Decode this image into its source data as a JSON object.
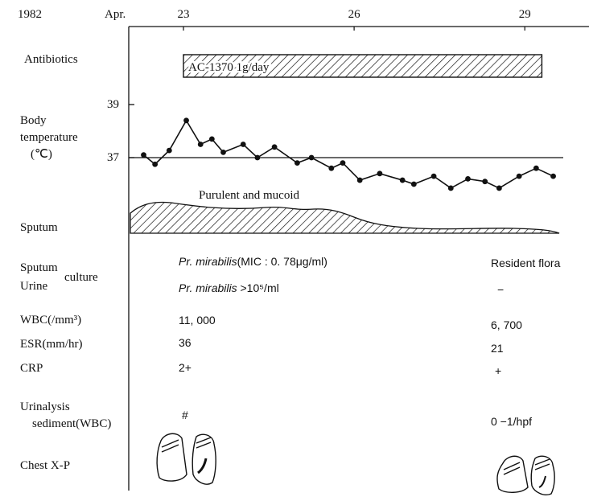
{
  "header": {
    "year": "1982",
    "month": "Apr."
  },
  "chart_data": {
    "type": "line",
    "x": [
      22.3,
      22.5,
      22.75,
      23.05,
      23.3,
      23.5,
      23.7,
      24.05,
      24.3,
      24.6,
      25.0,
      25.25,
      25.6,
      25.8,
      26.1,
      26.45,
      26.85,
      27.05,
      27.4,
      27.7,
      28.0,
      28.3,
      28.55,
      28.9,
      29.2,
      29.5
    ],
    "values": [
      37.1,
      36.75,
      37.27,
      38.4,
      37.5,
      37.7,
      37.2,
      37.5,
      37.0,
      37.4,
      36.8,
      37.0,
      36.6,
      36.8,
      36.15,
      36.4,
      36.15,
      36.0,
      36.3,
      35.85,
      36.2,
      36.1,
      35.85,
      36.3,
      36.6,
      36.3
    ],
    "color": "#111111",
    "xlim": [
      22,
      30
    ],
    "xticks": [
      23,
      26,
      29
    ],
    "ylim": [
      35.6,
      39.8
    ],
    "yticks": [
      37,
      39
    ],
    "reference_line": 37,
    "y_label": [
      "Body",
      "temperature",
      "(℃)"
    ]
  },
  "antibiotics": {
    "label": "Antibiotics",
    "drug": "AC-1370   1g/day",
    "period": [
      23,
      29.3
    ]
  },
  "sputum": {
    "label": "Sputum",
    "description": "Purulent and mucoid"
  },
  "culture": {
    "sputum_label": "Sputum",
    "urine_label": "Urine",
    "culture_label": "culture",
    "sputum_before_organism": "Pr. mirabilis",
    "sputum_before_detail": "(MIC : 0. 78μg/ml)",
    "urine_before_organism": "Pr. mirabilis",
    "urine_before_detail": " >10⁵/ml",
    "sputum_after": "Resident flora",
    "urine_after": "−"
  },
  "wbc": {
    "label": "WBC(/mm³)",
    "before": "11, 000",
    "after": "6, 700"
  },
  "esr": {
    "label": "ESR(mm/hr)",
    "before": "36",
    "after": "21"
  },
  "crp": {
    "label": "CRP",
    "before": "2+",
    "after": "+"
  },
  "urinalysis": {
    "label": [
      "Urinalysis",
      "sediment(WBC)"
    ],
    "before": "#",
    "after": "0 −1/hpf"
  },
  "chest": {
    "label": "Chest X-P"
  }
}
